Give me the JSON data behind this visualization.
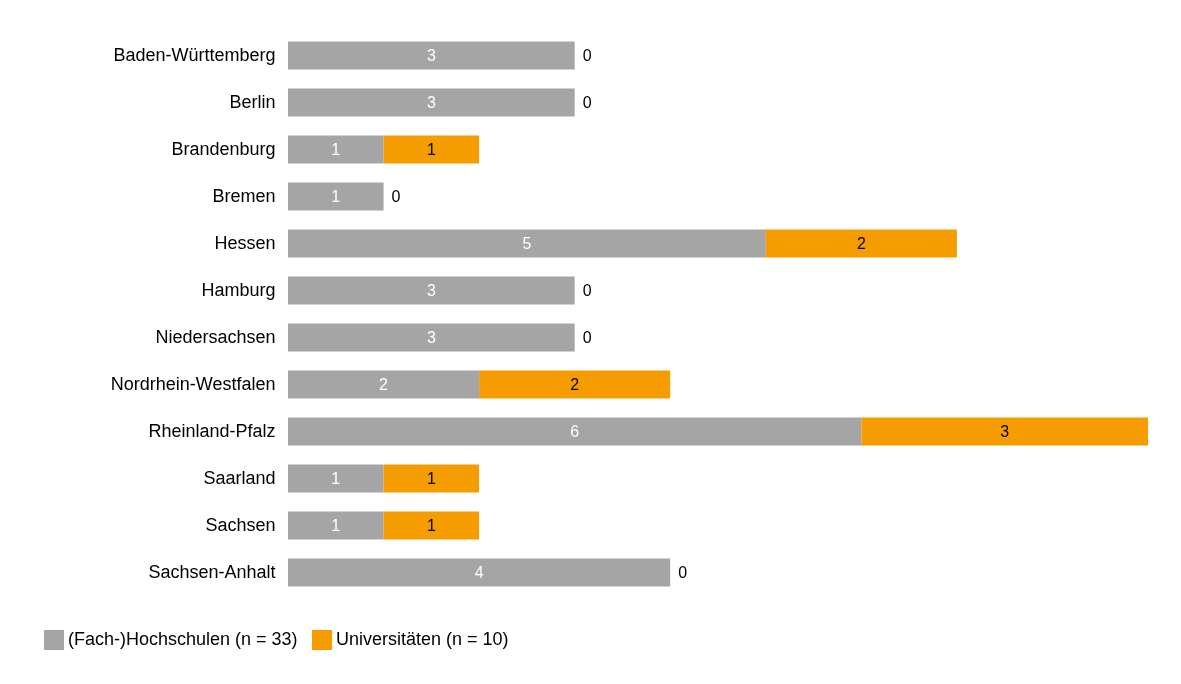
{
  "chart_data": {
    "type": "bar",
    "orientation": "horizontal",
    "stacked": true,
    "data_labels": true,
    "tick_labels": "y",
    "legend": "bottom left",
    "categories": [
      "Baden-Württemberg",
      "Berlin",
      "Brandenburg",
      "Bremen",
      "Hessen",
      "Hamburg",
      "Niedersachsen",
      "Nordrhein-Westfalen",
      "Rheinland-Pfalz",
      "Saarland",
      "Sachsen",
      "Sachsen-Anhalt"
    ],
    "xlim": [
      0,
      9
    ],
    "series": [
      {
        "name": "(Fach-)Hochschulen (n = 33)",
        "color": "#a5a5a5",
        "values": [
          3,
          3,
          1,
          1,
          5,
          3,
          3,
          2,
          6,
          1,
          1,
          4
        ]
      },
      {
        "name": "Universitäten (n = 10)",
        "color": "#f59c00",
        "values": [
          0,
          0,
          1,
          0,
          2,
          0,
          0,
          2,
          3,
          1,
          1,
          0
        ]
      }
    ]
  }
}
